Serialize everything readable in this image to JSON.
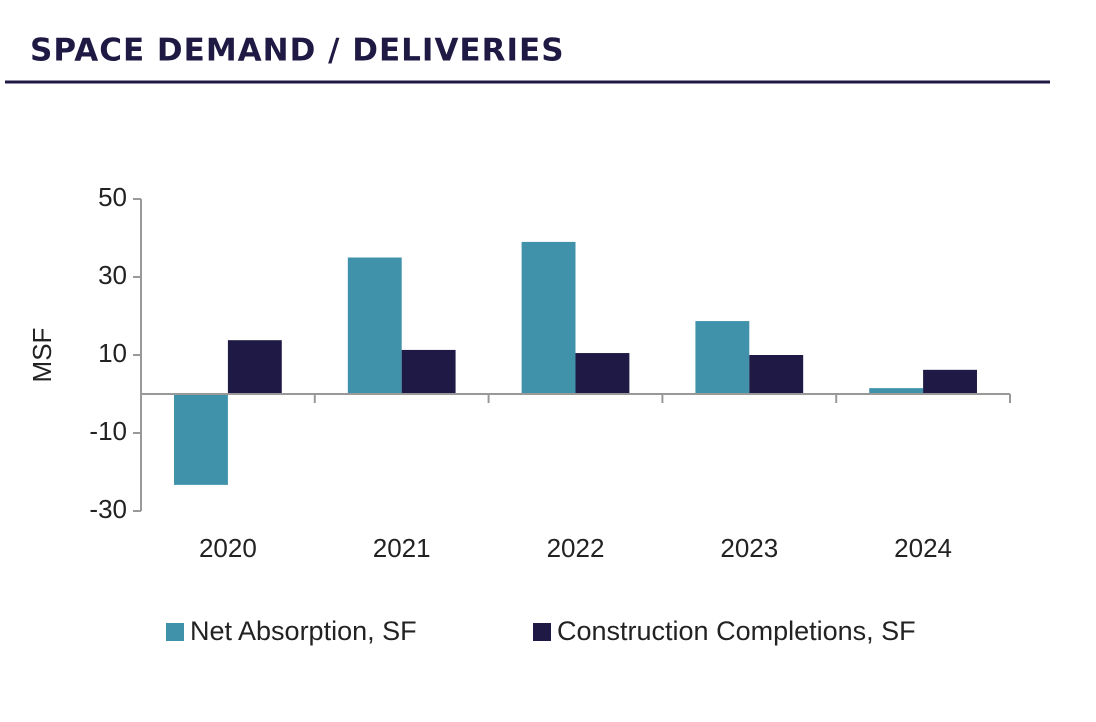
{
  "chart_data": {
    "type": "bar",
    "title": "SPACE DEMAND / DELIVERIES",
    "ylabel": "MSF",
    "categories": [
      "2020",
      "2021",
      "2022",
      "2023",
      "2024"
    ],
    "series": [
      {
        "name": "Net Absorption, SF",
        "color": "#4092ab",
        "values": [
          -23.3,
          35,
          39,
          18.7,
          1.5
        ]
      },
      {
        "name": "Construction Completions, SF",
        "color": "#1e1a45",
        "values": [
          13.8,
          11.3,
          10.5,
          10,
          6.2
        ]
      }
    ],
    "ylim": [
      -30,
      50
    ],
    "yticks": [
      -30,
      -10,
      10,
      30,
      50
    ],
    "grid": false,
    "legend": "bottom"
  }
}
